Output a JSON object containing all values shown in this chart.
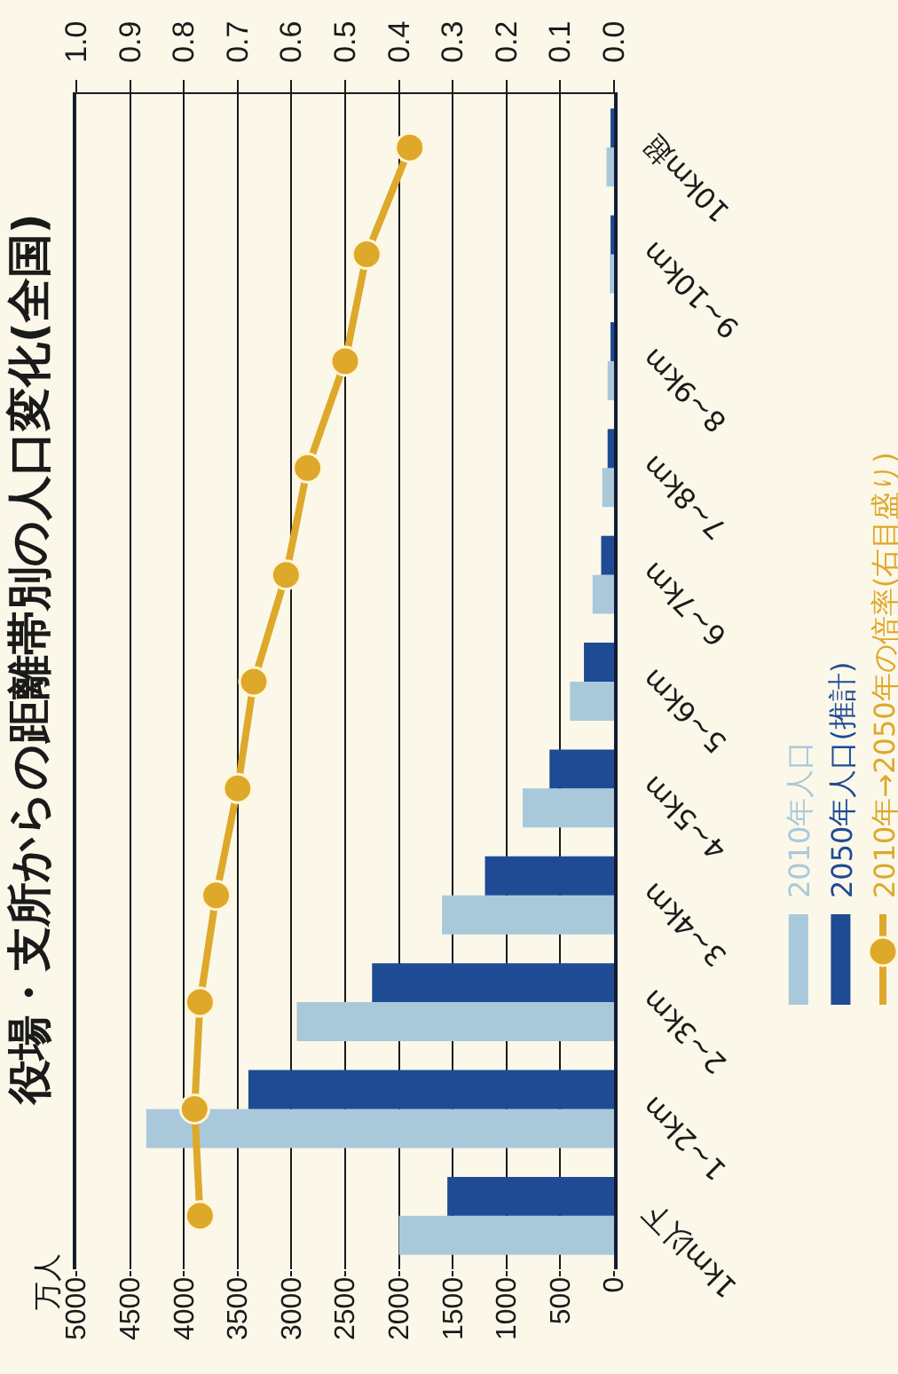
{
  "chart_data": {
    "type": "bar",
    "orientation": "horizontal",
    "title": "役場・支所からの距離帯別の人口変化(全国)",
    "annotations": [
      "万人"
    ],
    "categories": [
      "10km超",
      "9~10km",
      "8~9km",
      "7~8km",
      "6~7km",
      "5~6km",
      "4~5km",
      "3~4km",
      "2~3km",
      "1~2km",
      "1km以下"
    ],
    "series": [
      {
        "name": "2010年人口",
        "color": "#a9c9da",
        "values": [
          70,
          40,
          60,
          110,
          200,
          410,
          850,
          1600,
          2950,
          4350,
          2000
        ]
      },
      {
        "name": "2050年人口(推計)",
        "color": "#1f4b94",
        "values": [
          30,
          20,
          30,
          60,
          120,
          280,
          600,
          1200,
          2250,
          3400,
          1550
        ]
      },
      {
        "name": "2010年→2050年の倍率(右目盛り)",
        "type": "line",
        "axis": "x2",
        "marker": "circle",
        "color": "#dea82a",
        "values": [
          0.38,
          0.46,
          0.5,
          0.57,
          0.61,
          0.67,
          0.7,
          0.74,
          0.77,
          0.78,
          0.77
        ]
      }
    ],
    "xlim": [
      5000,
      0
    ],
    "xticks": [
      0,
      500,
      1000,
      1500,
      2000,
      2500,
      3000,
      3500,
      4000,
      4500,
      5000
    ],
    "x2lim": [
      1.0,
      0.0
    ],
    "x2ticks": [
      {
        "value": 0,
        "label": "0.0"
      },
      0.1,
      0.2,
      0.3,
      0.4,
      0.5,
      0.6,
      0.7,
      0.8,
      0.9,
      {
        "value": 1,
        "label": "1.0"
      }
    ],
    "grid": "x",
    "legend": "right"
  }
}
